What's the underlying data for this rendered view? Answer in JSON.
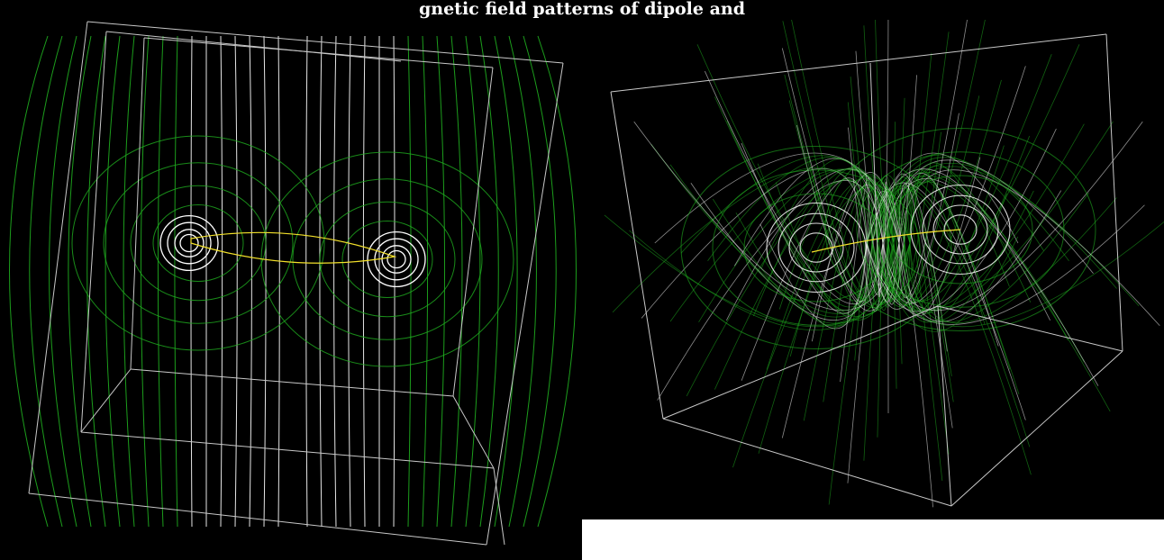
{
  "figure": {
    "title": "gnetic field patterns of dipole and",
    "background_color": "#000000",
    "colors": {
      "box_edges": "#c8c8c8",
      "outer_field_lines": "#1fae1f",
      "inner_field_lines": "#ffffff",
      "current_loop": "#f2e02a"
    }
  },
  "panels": [
    {
      "view": "front-on view of current loop inside wireframe box"
    },
    {
      "view": "oblique 3D view of dipole field lines inside wireframe box"
    }
  ]
}
